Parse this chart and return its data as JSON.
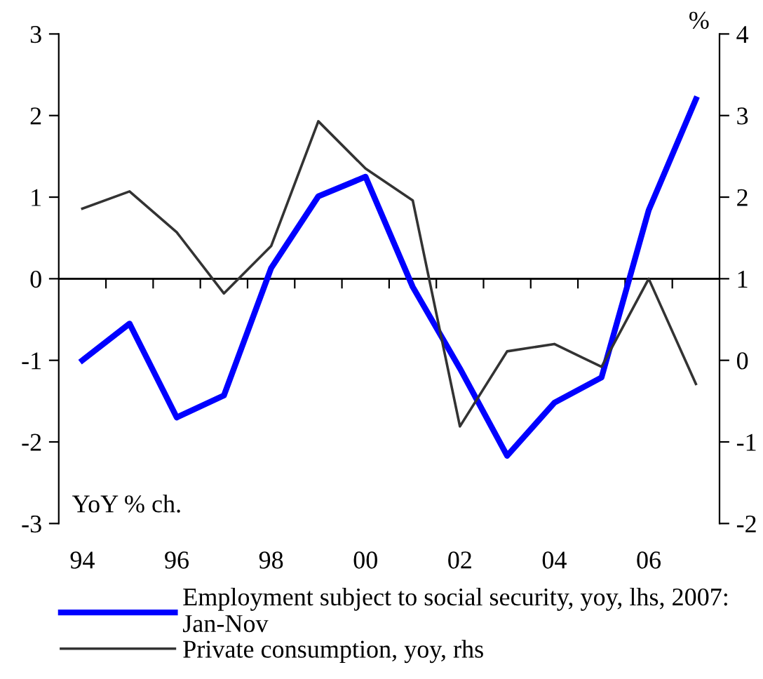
{
  "chart_data": {
    "type": "line",
    "categories": [
      "94",
      null,
      "96",
      null,
      "98",
      null,
      "00",
      null,
      "02",
      null,
      "04",
      null,
      "06",
      null
    ],
    "ylabel": "YoY % ch.",
    "y2label": "%",
    "ylim": [
      -3,
      3
    ],
    "yticks": [
      -3,
      -2,
      -1,
      0,
      1,
      2,
      3
    ],
    "y2lim": [
      -2,
      4
    ],
    "y2ticks": [
      -2,
      -1,
      0,
      1,
      2,
      3,
      4
    ],
    "ref_lines": [
      {
        "axis": "y",
        "value": 0,
        "color": "#000000"
      }
    ],
    "legend": "bottom",
    "marker": "none",
    "line_style": "solid",
    "series": [
      {
        "name": "Employment subject to social security, yoy, lhs, 2007:\nJan-Nov",
        "color": "#0000ff",
        "values": [
          -1.0,
          -0.55,
          -1.7,
          -1.43,
          0.13,
          1.01,
          1.25,
          -0.1,
          -1.1,
          -2.17,
          -1.52,
          -1.21,
          0.84,
          2.2
        ]
      },
      {
        "name": "Private consumption, yoy, rhs",
        "color": "#333333",
        "axis": "y2",
        "values": [
          1.86,
          2.07,
          1.57,
          0.82,
          1.4,
          2.93,
          2.35,
          1.96,
          -0.81,
          0.11,
          0.2,
          -0.08,
          1.0,
          -0.29
        ]
      }
    ]
  }
}
